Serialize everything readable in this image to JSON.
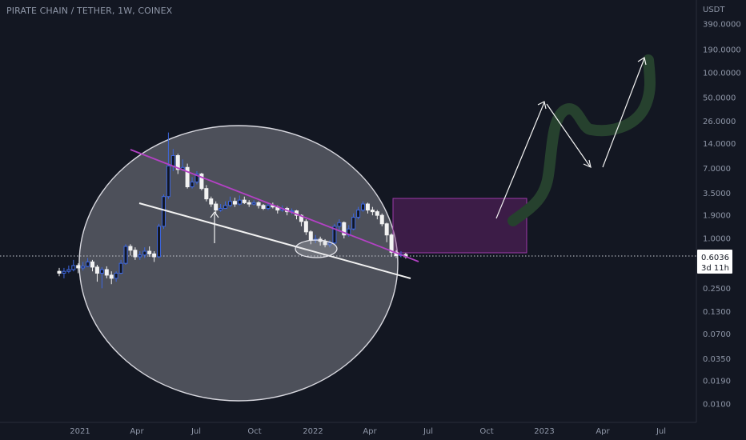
{
  "header": {
    "symbol_line": "PIRATE CHAIN / TETHER, 1W, COINEX"
  },
  "chart_data": {
    "type": "candlestick",
    "title": "PIRATE CHAIN / TETHER, 1W, COINEX",
    "y_unit": "USDT",
    "y_scale": "log",
    "y_ticks": [
      "390.0000",
      "190.0000",
      "100.0000",
      "50.0000",
      "26.0000",
      "14.0000",
      "7.0000",
      "3.5000",
      "1.9000",
      "1.0000",
      "0.2500",
      "0.1300",
      "0.0700",
      "0.0350",
      "0.0190",
      "0.0100"
    ],
    "x_ticks": [
      "2021",
      "Apr",
      "Jul",
      "Oct",
      "2022",
      "Apr",
      "Jul",
      "Oct",
      "2023",
      "Apr",
      "Jul"
    ],
    "last_price": "0.6036",
    "countdown": "3d 11h",
    "candles": [
      [
        0.4,
        0.38,
        0.44,
        0.35
      ],
      [
        0.38,
        0.4,
        0.44,
        0.33
      ],
      [
        0.4,
        0.42,
        0.47,
        0.38
      ],
      [
        0.42,
        0.47,
        0.55,
        0.4
      ],
      [
        0.47,
        0.44,
        0.5,
        0.38
      ],
      [
        0.44,
        0.46,
        0.52,
        0.41
      ],
      [
        0.46,
        0.52,
        0.58,
        0.45
      ],
      [
        0.52,
        0.45,
        0.55,
        0.4
      ],
      [
        0.45,
        0.38,
        0.48,
        0.3
      ],
      [
        0.38,
        0.42,
        0.45,
        0.25
      ],
      [
        0.42,
        0.36,
        0.46,
        0.33
      ],
      [
        0.36,
        0.33,
        0.4,
        0.28
      ],
      [
        0.33,
        0.38,
        0.4,
        0.3
      ],
      [
        0.38,
        0.5,
        0.55,
        0.37
      ],
      [
        0.5,
        0.8,
        0.85,
        0.48
      ],
      [
        0.8,
        0.72,
        0.85,
        0.62
      ],
      [
        0.72,
        0.6,
        0.78,
        0.55
      ],
      [
        0.6,
        0.63,
        0.7,
        0.55
      ],
      [
        0.63,
        0.7,
        0.78,
        0.58
      ],
      [
        0.7,
        0.65,
        0.8,
        0.6
      ],
      [
        0.65,
        0.6,
        0.7,
        0.52
      ],
      [
        0.6,
        1.4,
        1.5,
        0.58
      ],
      [
        1.4,
        3.2,
        3.4,
        1.3
      ],
      [
        3.2,
        7.5,
        19.0,
        3.0
      ],
      [
        7.5,
        10.0,
        12.0,
        6.5
      ],
      [
        10.0,
        6.8,
        10.5,
        6.0
      ],
      [
        6.8,
        7.2,
        9.0,
        6.5
      ],
      [
        7.2,
        4.2,
        8.0,
        4.0
      ],
      [
        4.2,
        4.8,
        5.5,
        4.0
      ],
      [
        4.8,
        6.0,
        6.5,
        4.5
      ],
      [
        6.0,
        4.0,
        6.2,
        3.8
      ],
      [
        4.0,
        3.0,
        4.4,
        2.8
      ],
      [
        3.0,
        2.6,
        3.2,
        2.4
      ],
      [
        2.6,
        2.2,
        2.8,
        2.0
      ],
      [
        2.2,
        2.3,
        2.6,
        2.1
      ],
      [
        2.3,
        2.5,
        2.8,
        2.3
      ],
      [
        2.5,
        2.8,
        3.2,
        2.4
      ],
      [
        2.8,
        2.6,
        3.1,
        2.4
      ],
      [
        2.6,
        2.9,
        3.3,
        2.5
      ],
      [
        2.9,
        2.7,
        3.2,
        2.6
      ],
      [
        2.7,
        2.6,
        2.9,
        2.4
      ],
      [
        2.6,
        2.7,
        2.9,
        2.5
      ],
      [
        2.7,
        2.5,
        2.8,
        2.3
      ],
      [
        2.5,
        2.3,
        2.6,
        2.2
      ],
      [
        2.3,
        2.5,
        2.7,
        2.2
      ],
      [
        2.5,
        2.4,
        2.7,
        2.3
      ],
      [
        2.4,
        2.2,
        2.5,
        2.0
      ],
      [
        2.2,
        2.3,
        2.5,
        2.1
      ],
      [
        2.3,
        2.1,
        2.4,
        1.9
      ],
      [
        2.1,
        2.15,
        2.3,
        1.95
      ],
      [
        2.15,
        1.9,
        2.2,
        1.7
      ],
      [
        1.9,
        1.6,
        1.95,
        1.4
      ],
      [
        1.6,
        1.2,
        1.7,
        1.1
      ],
      [
        1.2,
        0.95,
        1.25,
        0.85
      ],
      [
        0.95,
        0.98,
        1.1,
        0.88
      ],
      [
        0.98,
        0.92,
        1.05,
        0.82
      ],
      [
        0.92,
        0.84,
        0.98,
        0.78
      ],
      [
        0.84,
        0.88,
        0.95,
        0.78
      ],
      [
        0.88,
        1.4,
        1.5,
        0.85
      ],
      [
        1.4,
        1.55,
        1.7,
        1.2
      ],
      [
        1.55,
        1.1,
        1.6,
        1.0
      ],
      [
        1.1,
        1.3,
        1.45,
        1.05
      ],
      [
        1.3,
        1.8,
        2.0,
        1.25
      ],
      [
        1.8,
        2.2,
        2.4,
        1.7
      ],
      [
        2.2,
        2.6,
        2.8,
        2.1
      ],
      [
        2.6,
        2.2,
        2.7,
        2.0
      ],
      [
        2.2,
        2.1,
        2.4,
        1.9
      ],
      [
        2.1,
        1.9,
        2.2,
        1.7
      ],
      [
        1.9,
        1.5,
        2.0,
        1.4
      ],
      [
        1.5,
        1.1,
        1.55,
        0.9
      ],
      [
        1.1,
        0.68,
        1.15,
        0.6
      ],
      [
        0.68,
        0.62,
        0.72,
        0.58
      ],
      [
        0.62,
        0.64,
        0.7,
        0.59
      ],
      [
        0.64,
        0.6,
        0.67,
        0.57
      ]
    ]
  }
}
